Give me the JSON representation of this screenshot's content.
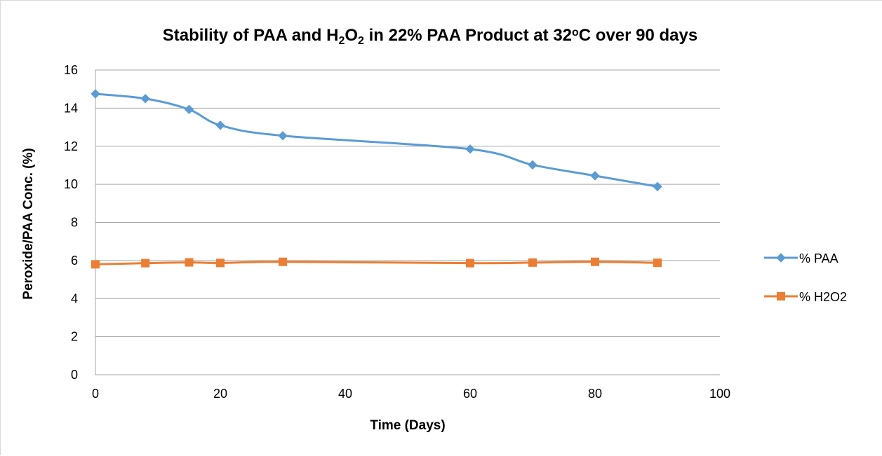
{
  "chart_data": {
    "type": "line",
    "title": {
      "parts": [
        {
          "text": "Stability of PAA and H",
          "style": "normal"
        },
        {
          "text": "2",
          "style": "sub"
        },
        {
          "text": "O",
          "style": "normal"
        },
        {
          "text": "2",
          "style": "sub"
        },
        {
          "text": " in 22% PAA Product at 32",
          "style": "normal"
        },
        {
          "text": "o",
          "style": "super"
        },
        {
          "text": "C over 90 days",
          "style": "normal"
        }
      ]
    },
    "xlabel": "Time (Days)",
    "ylabel": "Peroxide/PAA Conc. (%)",
    "xlim": [
      0,
      100
    ],
    "ylim": [
      0,
      16
    ],
    "xticks": [
      0,
      20,
      40,
      60,
      80,
      100
    ],
    "yticks": [
      0,
      2,
      4,
      6,
      8,
      10,
      12,
      14,
      16
    ],
    "grid": "horizontal",
    "legend_position": "right",
    "x": [
      0,
      8,
      15,
      20,
      30,
      60,
      70,
      80,
      90
    ],
    "series": [
      {
        "name": "% PAA",
        "color": "#5B9BD5",
        "marker": "diamond",
        "values": [
          14.75,
          14.5,
          13.93,
          13.1,
          12.55,
          11.85,
          11.02,
          10.45,
          9.88
        ]
      },
      {
        "name": "% H2O2",
        "color": "#ED7D31",
        "marker": "square",
        "values": [
          5.8,
          5.86,
          5.9,
          5.87,
          5.93,
          5.86,
          5.89,
          5.93,
          5.88
        ]
      }
    ]
  }
}
